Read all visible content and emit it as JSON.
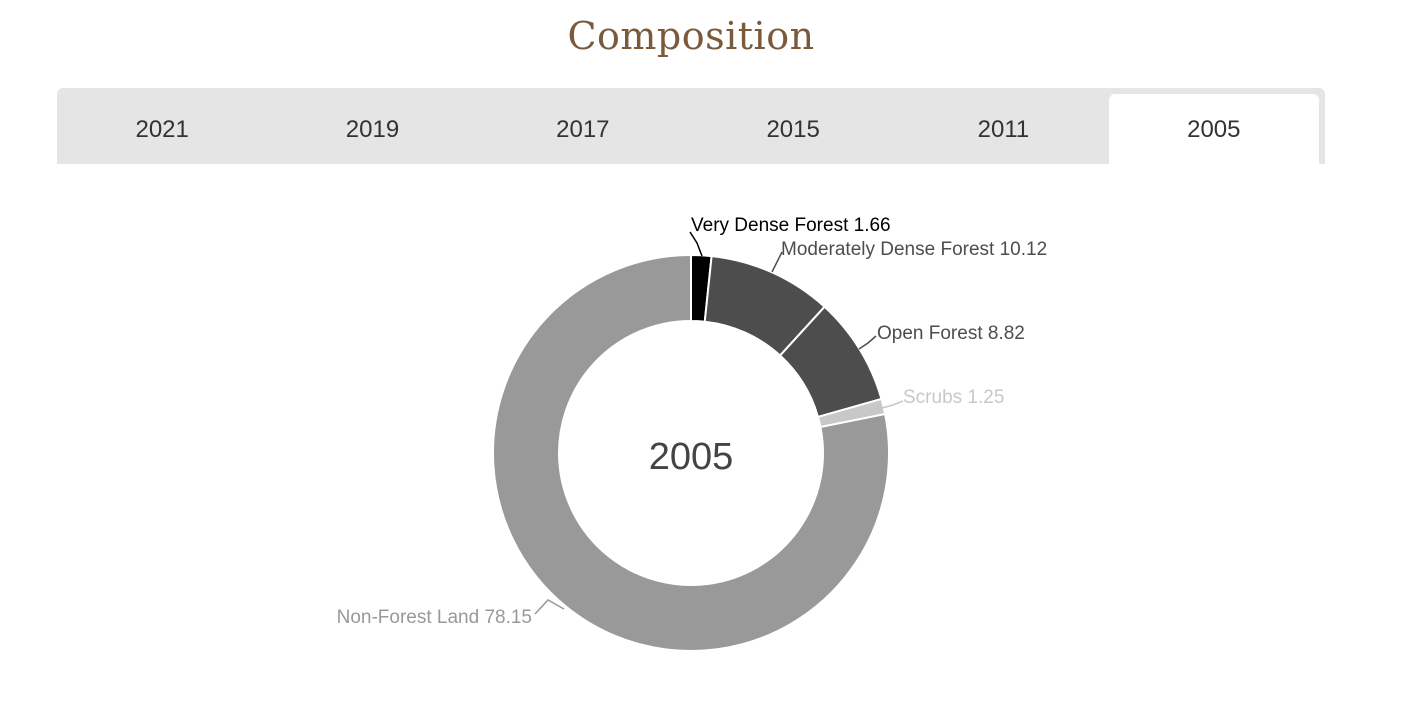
{
  "heading": "Composition",
  "tabs": [
    {
      "label": "2021",
      "active": false
    },
    {
      "label": "2019",
      "active": false
    },
    {
      "label": "2017",
      "active": false
    },
    {
      "label": "2015",
      "active": false
    },
    {
      "label": "2011",
      "active": false
    },
    {
      "label": "2005",
      "active": true
    }
  ],
  "chart_data": {
    "type": "pie",
    "center_text": "2005",
    "legend": "none",
    "slices": [
      {
        "label": "Very Dense Forest",
        "value": 1.66,
        "color": "#000000",
        "text_color": "#000000"
      },
      {
        "label": "Moderately Dense Forest",
        "value": 10.12,
        "color": "#4d4d4d",
        "text_color": "#4d4d4d"
      },
      {
        "label": "Open Forest",
        "value": 8.82,
        "color": "#4d4d4d",
        "text_color": "#4d4d4d"
      },
      {
        "label": "Scrubs",
        "value": 1.25,
        "color": "#c8c8c8",
        "text_color": "#c8c8c8"
      },
      {
        "label": "Non-Forest Land",
        "value": 78.15,
        "color": "#999999",
        "text_color": "#999999"
      }
    ]
  }
}
